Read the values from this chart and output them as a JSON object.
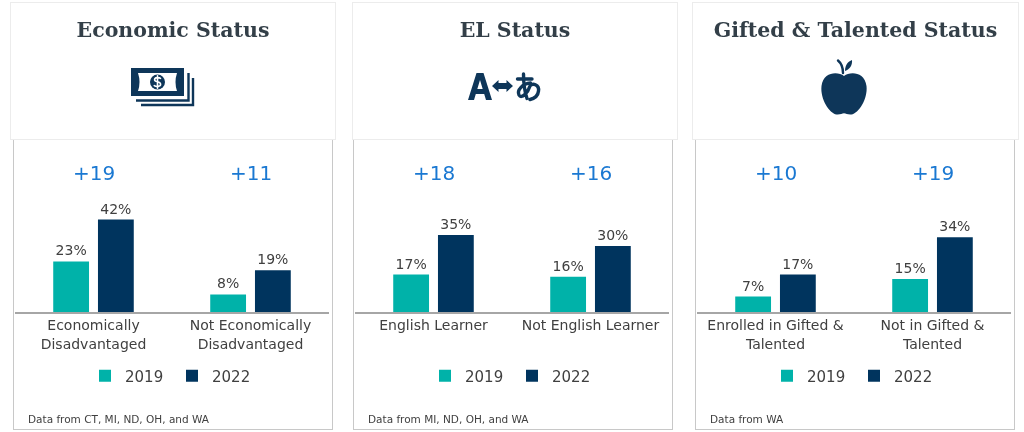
{
  "chart_data": [
    {
      "type": "bar",
      "title": "Economic Status",
      "categories": [
        "Economically Disadvantaged",
        "Not Economically Disadvantaged"
      ],
      "series": [
        {
          "name": "2019",
          "color": "#00b2a9",
          "values": [
            23,
            8
          ],
          "value_labels": [
            "23%",
            "8%"
          ]
        },
        {
          "name": "2022",
          "color": "#00345e",
          "values": [
            42,
            19
          ],
          "value_labels": [
            "42%",
            "19%"
          ]
        }
      ],
      "annotations": [
        "+19",
        "+11",
        "Data from CT, MI, ND, OH, and WA"
      ],
      "tick_labels": "x",
      "legend": "bottom"
    },
    {
      "type": "bar",
      "title": "EL Status",
      "categories": [
        "English Learner",
        "Not English Learner"
      ],
      "series": [
        {
          "name": "2019",
          "color": "#00b2a9",
          "values": [
            17,
            16
          ],
          "value_labels": [
            "17%",
            "16%"
          ]
        },
        {
          "name": "2022",
          "color": "#00345e",
          "values": [
            35,
            30
          ],
          "value_labels": [
            "35%",
            "30%"
          ]
        }
      ],
      "annotations": [
        "+18",
        "+16",
        "Data from MI, ND, OH, and WA"
      ],
      "tick_labels": "x",
      "legend": "bottom"
    },
    {
      "type": "bar",
      "title": "Gifted & Talented Status",
      "categories": [
        "Enrolled in Gifted & Talented",
        "Not in Gifted & Talented"
      ],
      "series": [
        {
          "name": "2019",
          "color": "#00b2a9",
          "values": [
            7,
            15
          ],
          "value_labels": [
            "7%",
            "15%"
          ]
        },
        {
          "name": "2022",
          "color": "#00345e",
          "values": [
            17,
            34
          ],
          "value_labels": [
            "17%",
            "34%"
          ]
        }
      ],
      "annotations": [
        "+10",
        "+19",
        "Data from WA"
      ],
      "tick_labels": "x",
      "legend": "bottom"
    }
  ]
}
